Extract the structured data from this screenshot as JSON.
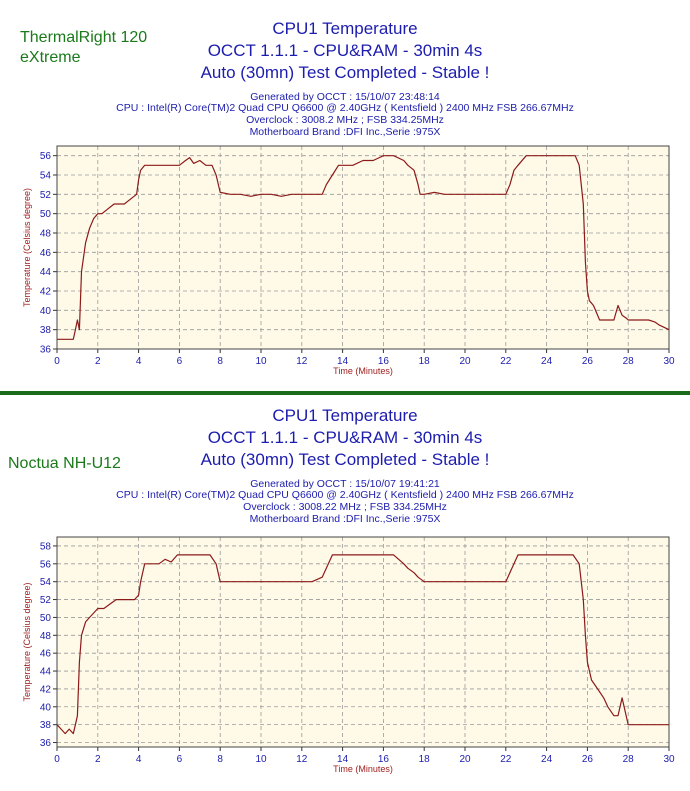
{
  "charts": [
    {
      "cooler_label": "ThermalRight 120\neXtreme",
      "title": "CPU1 Temperature",
      "subtitle1": "OCCT 1.1.1 - CPU&RAM - 30min 4s",
      "subtitle2": "Auto (30mn) Test Completed - Stable !",
      "generated": "Generated by OCCT : 15/10/07 23:48:14",
      "cpu": "CPU : Intel(R) Core(TM)2 Quad CPU Q6600 @ 2.40GHz ( Kentsfield ) 2400 MHz FSB 266.67MHz",
      "overclock": "Overclock : 3008.2 MHz ; FSB 334.25MHz",
      "motherboard": "Motherboard Brand :DFI Inc.,Serie :975X"
    },
    {
      "cooler_label": "Noctua NH-U12",
      "title": "CPU1 Temperature",
      "subtitle1": "OCCT 1.1.1 - CPU&RAM - 30min 4s",
      "subtitle2": "Auto (30mn) Test Completed - Stable !",
      "generated": "Generated by OCCT : 15/10/07 19:41:21",
      "cpu": "CPU : Intel(R) Core(TM)2 Quad CPU Q6600 @ 2.40GHz ( Kentsfield ) 2400 MHz FSB 266.67MHz",
      "overclock": "Overclock : 3008.22 MHz ; FSB 334.25MHz",
      "motherboard": "Motherboard Brand :DFI Inc.,Serie :975X"
    }
  ],
  "colors": {
    "plot_bg": "#fffae8",
    "line": "#8b1a1a",
    "grid": "#9a9a9a",
    "text": "#1c1cae",
    "axis_title": "#a02020",
    "cooler_label": "#1a7a1a",
    "divider": "#1a6b1a"
  },
  "chart_data": [
    {
      "type": "line",
      "xlabel": "Time (Minutes)",
      "ylabel": "Temperature (Celsius degree)",
      "xlim": [
        0,
        30
      ],
      "ylim": [
        36,
        57
      ],
      "xticks": [
        0,
        2,
        4,
        6,
        8,
        10,
        12,
        14,
        16,
        18,
        20,
        22,
        24,
        26,
        28,
        30
      ],
      "yticks": [
        36,
        38,
        40,
        42,
        44,
        46,
        48,
        50,
        52,
        54,
        56
      ],
      "grid": true,
      "series": [
        {
          "x": [
            0,
            0.8,
            0.9,
            1.0,
            1.1,
            1.2,
            1.4,
            1.6,
            1.8,
            2.0,
            2.2,
            2.5,
            2.8,
            3.0,
            3.3,
            3.6,
            3.9,
            4.0,
            4.1,
            4.3,
            4.6,
            5.0,
            5.5,
            6.0,
            6.3,
            6.5,
            6.7,
            7.0,
            7.3,
            7.6,
            7.8,
            8.0,
            8.5,
            9.0,
            9.5,
            10.0,
            10.5,
            11.0,
            11.5,
            12.0,
            12.5,
            13.0,
            13.2,
            13.5,
            13.8,
            14.0,
            14.5,
            15.0,
            15.5,
            16.0,
            16.5,
            17.0,
            17.2,
            17.5,
            17.7,
            17.8,
            18.0,
            18.5,
            19.0,
            19.5,
            20.0,
            20.5,
            21.0,
            21.5,
            22.0,
            22.2,
            22.4,
            22.6,
            23.0,
            23.5,
            24.0,
            24.5,
            25.0,
            25.4,
            25.6,
            25.8,
            25.9,
            26.0,
            26.1,
            26.3,
            26.6,
            27.0,
            27.3,
            27.5,
            27.7,
            27.9,
            28.0,
            28.5,
            29.0,
            29.3,
            29.5,
            30.0
          ],
          "y": [
            37,
            37,
            38,
            39,
            38,
            44,
            47,
            48.5,
            49.5,
            50,
            50,
            50.5,
            51,
            51,
            51,
            51.5,
            52,
            53.5,
            54.5,
            55,
            55,
            55,
            55,
            55,
            55.5,
            55.8,
            55.2,
            55.5,
            55,
            55,
            54,
            52.2,
            52,
            52,
            51.8,
            52,
            52,
            51.8,
            52,
            52,
            52,
            52,
            53,
            54,
            55,
            55,
            55,
            55.5,
            55.5,
            56,
            56,
            55.5,
            55,
            54.5,
            53,
            52,
            52,
            52.2,
            52,
            52,
            52,
            52,
            52,
            52,
            52,
            53,
            54.5,
            55,
            56,
            56,
            56,
            56,
            56,
            56,
            55,
            51,
            45,
            42,
            41,
            40.5,
            39,
            39,
            39,
            40.5,
            39.5,
            39.2,
            39,
            39,
            39,
            38.8,
            38.5,
            38
          ]
        }
      ]
    },
    {
      "type": "line",
      "xlabel": "Time (Minutes)",
      "ylabel": "Temperature (Celsius degree)",
      "xlim": [
        0,
        30
      ],
      "ylim": [
        35.5,
        59
      ],
      "xticks": [
        0,
        2,
        4,
        6,
        8,
        10,
        12,
        14,
        16,
        18,
        20,
        22,
        24,
        26,
        28,
        30
      ],
      "yticks": [
        36,
        38,
        40,
        42,
        44,
        46,
        48,
        50,
        52,
        54,
        56,
        58
      ],
      "grid": true,
      "series": [
        {
          "x": [
            0,
            0.2,
            0.4,
            0.6,
            0.8,
            0.9,
            1.0,
            1.1,
            1.2,
            1.4,
            1.6,
            1.8,
            2.0,
            2.3,
            2.6,
            2.9,
            3.2,
            3.5,
            3.8,
            4.0,
            4.1,
            4.3,
            4.6,
            5.0,
            5.3,
            5.6,
            5.9,
            6.2,
            6.5,
            7.0,
            7.5,
            7.8,
            8.0,
            8.5,
            9.0,
            9.5,
            10.0,
            10.5,
            11.0,
            11.5,
            12.0,
            12.5,
            13.0,
            13.2,
            13.5,
            14.0,
            14.5,
            15.0,
            15.5,
            16.0,
            16.5,
            17.0,
            17.2,
            17.5,
            17.7,
            18.0,
            18.5,
            19.0,
            19.5,
            20.0,
            20.5,
            21.0,
            21.5,
            22.0,
            22.3,
            22.6,
            23.0,
            23.5,
            24.0,
            24.5,
            25.0,
            25.3,
            25.6,
            25.8,
            25.9,
            26.0,
            26.2,
            26.5,
            26.8,
            27.0,
            27.3,
            27.5,
            27.7,
            28.0,
            28.5,
            29.0,
            29.5,
            30.0
          ],
          "y": [
            38,
            37.5,
            37,
            37.5,
            37,
            38,
            39,
            45,
            48,
            49.5,
            50,
            50.5,
            51,
            51,
            51.5,
            52,
            52,
            52,
            52,
            52.5,
            54,
            56,
            56,
            56,
            56.5,
            56.2,
            57,
            57,
            57,
            57,
            57,
            56,
            54,
            54,
            54,
            54,
            54,
            54,
            54,
            54,
            54,
            54,
            54.5,
            55.5,
            57,
            57,
            57,
            57,
            57,
            57,
            57,
            56,
            55.5,
            55,
            54.5,
            54,
            54,
            54,
            54,
            54,
            54,
            54,
            54,
            54,
            55.5,
            57,
            57,
            57,
            57,
            57,
            57,
            57,
            56,
            52,
            48,
            45,
            43,
            42,
            41,
            40,
            39,
            39,
            41,
            38,
            38,
            38,
            38,
            38
          ]
        }
      ]
    }
  ]
}
